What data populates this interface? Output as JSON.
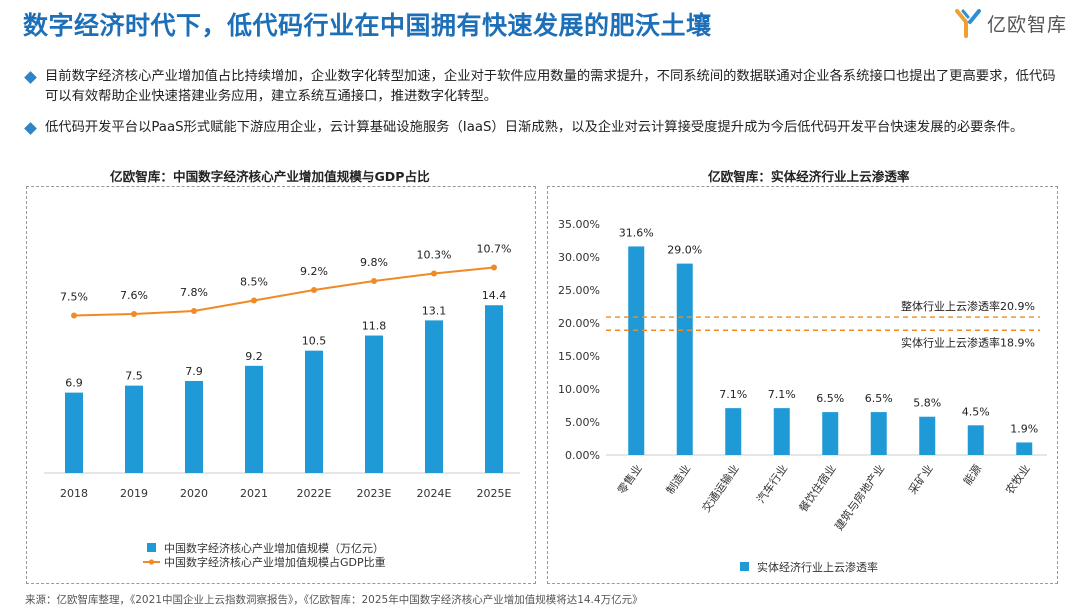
{
  "page": {
    "title": "数字经济时代下，低代码行业在中国拥有快速发展的肥沃土壤",
    "logo_text": "亿欧智库",
    "bullets": [
      "目前数字经济核心产业增加值占比持续增加，企业数字化转型加速，企业对于软件应用数量的需求提升，不同系统间的数据联通对企业各系统接口也提出了更高要求，低代码可以有效帮助企业快速搭建业务应用，建立系统互通接口，推进数字化转型。",
      "低代码开发平台以PaaS形式赋能下游应用企业，云计算基础设施服务（IaaS）日渐成熟，以及企业对云计算接受度提升成为今后低代码开发平台快速发展的必要条件。"
    ],
    "source": "来源：亿欧智库整理，《2021中国企业上云指数洞察报告》，《亿欧智库：2025年中国数字经济核心产业增加值规模将达14.4万亿元》",
    "colors": {
      "title": "#1d6fb8",
      "bar": "#1f9ad6",
      "line": "#f08a24",
      "diamond": "#2e84c6"
    }
  },
  "chart_data": [
    {
      "type": "bar+line",
      "title": "亿欧智库：中国数字经济核心产业增加值规模与GDP占比",
      "categories": [
        "2018",
        "2019",
        "2020",
        "2021",
        "2022E",
        "2023E",
        "2024E",
        "2025E"
      ],
      "series": [
        {
          "name": "中国数字经济核心产业增加值规模（万亿元）",
          "kind": "bar",
          "values": [
            6.9,
            7.5,
            7.9,
            9.2,
            10.5,
            11.8,
            13.1,
            14.4
          ],
          "labels": [
            "6.9",
            "7.5",
            "7.9",
            "9.2",
            "10.5",
            "11.8",
            "13.1",
            "14.4"
          ]
        },
        {
          "name": "中国数字经济核心产业增加值规模占GDP比重",
          "kind": "line",
          "values": [
            7.5,
            7.6,
            7.8,
            8.5,
            9.2,
            9.8,
            10.3,
            10.7
          ],
          "labels": [
            "7.5%",
            "7.6%",
            "7.8%",
            "8.5%",
            "9.2%",
            "9.8%",
            "10.3%",
            "10.7%"
          ]
        }
      ],
      "bar_ylim": [
        0,
        20
      ],
      "line_ylim": [
        0,
        14
      ],
      "legend": "bottom"
    },
    {
      "type": "bar",
      "title": "亿欧智库：实体经济行业上云渗透率",
      "categories": [
        "零售业",
        "制造业",
        "交通运输业",
        "汽车行业",
        "餐饮住宿业",
        "建筑与房地产业",
        "采矿业",
        "能源",
        "农牧业"
      ],
      "series": [
        {
          "name": "实体经济行业上云渗透率",
          "values": [
            31.6,
            29.0,
            7.1,
            7.1,
            6.5,
            6.5,
            5.8,
            4.5,
            1.9
          ],
          "labels": [
            "31.6%",
            "29.0%",
            "7.1%",
            "7.1%",
            "6.5%",
            "6.5%",
            "5.8%",
            "4.5%",
            "1.9%"
          ]
        }
      ],
      "ylim": [
        0,
        35
      ],
      "yticks": [
        "0.00%",
        "5.00%",
        "10.00%",
        "15.00%",
        "20.00%",
        "25.00%",
        "30.00%",
        "35.00%"
      ],
      "reference_lines": [
        {
          "value": 20.9,
          "label": "整体行业上云渗透率20.9%"
        },
        {
          "value": 18.9,
          "label": "实体行业上云渗透率18.9%"
        }
      ],
      "legend": "bottom"
    }
  ]
}
